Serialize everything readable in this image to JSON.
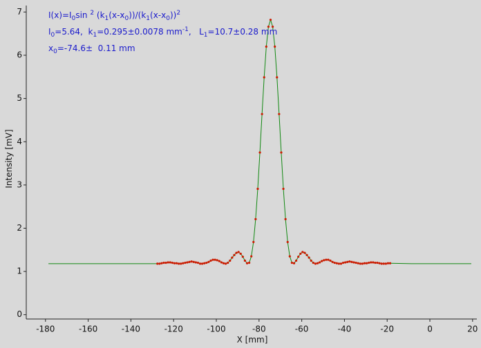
{
  "chart_data": {
    "type": "scatter",
    "annotations": [
      [
        {
          "text": "I(x)=I"
        },
        {
          "text": "0",
          "pos": "sub"
        },
        {
          "text": "sin "
        },
        {
          "text": "2",
          "pos": "sup"
        },
        {
          "text": " (k"
        },
        {
          "text": "1",
          "pos": "sub"
        },
        {
          "text": "(x-x"
        },
        {
          "text": "0",
          "pos": "sub"
        },
        {
          "text": "))/(k"
        },
        {
          "text": "1",
          "pos": "sub"
        },
        {
          "text": "(x-x"
        },
        {
          "text": "0",
          "pos": "sub"
        },
        {
          "text": "))"
        },
        {
          "text": "2",
          "pos": "sup"
        }
      ],
      [
        {
          "text": "I"
        },
        {
          "text": "0",
          "pos": "sub"
        },
        {
          "text": "=5.64,  k"
        },
        {
          "text": "1",
          "pos": "sub"
        },
        {
          "text": "=0.295±0.0078 mm"
        },
        {
          "text": "-1",
          "pos": "sup"
        },
        {
          "text": ",   L"
        },
        {
          "text": "1",
          "pos": "sub"
        },
        {
          "text": "=10.7±0.28 mm"
        }
      ],
      [
        {
          "text": "x"
        },
        {
          "text": "0",
          "pos": "sub"
        },
        {
          "text": "=-74.6±  0.11 mm"
        }
      ]
    ],
    "annotation_color": "#1a1acc",
    "x_label": "X [mm]",
    "y_label": "Intensity [mV]",
    "xlim": [
      -189,
      22
    ],
    "ylim": [
      -0.1,
      7.15
    ],
    "xticks": [
      -180,
      -160,
      -140,
      -120,
      -100,
      -80,
      -60,
      -40,
      -20,
      0,
      20
    ],
    "yticks": [
      0,
      1,
      2,
      3,
      4,
      5,
      6,
      7
    ],
    "grid": false,
    "series": [
      {
        "mode": "line",
        "color": "#118811",
        "x": [
          -178.6,
          -158.6,
          -138.6,
          -127.6,
          -126.6,
          -125.6,
          -124.6,
          -123.6,
          -122.6,
          -121.6,
          -120.6,
          -119.6,
          -118.6,
          -117.6,
          -116.6,
          -115.6,
          -114.6,
          -113.6,
          -112.6,
          -111.6,
          -110.6,
          -109.6,
          -108.6,
          -107.6,
          -106.6,
          -105.6,
          -104.6,
          -103.6,
          -102.6,
          -101.6,
          -100.6,
          -99.6,
          -98.6,
          -97.6,
          -96.6,
          -95.6,
          -94.6,
          -93.6,
          -92.6,
          -91.6,
          -90.6,
          -89.6,
          -88.6,
          -87.6,
          -86.6,
          -85.6,
          -84.6,
          -83.6,
          -82.6,
          -81.6,
          -80.6,
          -79.6,
          -78.6,
          -77.6,
          -76.6,
          -75.6,
          -74.6,
          -73.6,
          -72.6,
          -71.6,
          -70.6,
          -69.6,
          -68.6,
          -67.6,
          -66.6,
          -65.6,
          -64.6,
          -63.6,
          -62.6,
          -61.6,
          -60.6,
          -59.6,
          -58.6,
          -57.6,
          -56.6,
          -55.6,
          -54.6,
          -53.6,
          -52.6,
          -51.6,
          -50.6,
          -49.6,
          -48.6,
          -47.6,
          -46.6,
          -45.6,
          -44.6,
          -43.6,
          -42.6,
          -41.6,
          -40.6,
          -39.6,
          -38.6,
          -37.6,
          -36.6,
          -35.6,
          -34.6,
          -33.6,
          -32.6,
          -31.6,
          -30.6,
          -29.6,
          -28.6,
          -27.6,
          -26.6,
          -25.6,
          -24.6,
          -23.6,
          -22.6,
          -21.6,
          -20.6,
          -19.6,
          -18.6,
          -8.6,
          1.4,
          19.4
        ],
        "values": [
          1.18,
          1.18,
          1.18,
          1.18,
          1.18,
          1.19,
          1.2,
          1.2,
          1.21,
          1.21,
          1.2,
          1.19,
          1.19,
          1.18,
          1.18,
          1.19,
          1.2,
          1.21,
          1.22,
          1.23,
          1.22,
          1.21,
          1.2,
          1.18,
          1.18,
          1.19,
          1.2,
          1.22,
          1.25,
          1.27,
          1.27,
          1.26,
          1.24,
          1.21,
          1.19,
          1.18,
          1.2,
          1.25,
          1.32,
          1.38,
          1.43,
          1.45,
          1.41,
          1.34,
          1.25,
          1.19,
          1.2,
          1.35,
          1.68,
          2.21,
          2.91,
          3.75,
          4.64,
          5.49,
          6.2,
          6.66,
          6.82,
          6.66,
          6.2,
          5.49,
          4.64,
          3.75,
          2.91,
          2.21,
          1.68,
          1.35,
          1.2,
          1.19,
          1.25,
          1.34,
          1.41,
          1.45,
          1.43,
          1.38,
          1.32,
          1.25,
          1.2,
          1.18,
          1.19,
          1.21,
          1.24,
          1.26,
          1.27,
          1.27,
          1.25,
          1.22,
          1.2,
          1.19,
          1.18,
          1.18,
          1.2,
          1.21,
          1.22,
          1.23,
          1.22,
          1.21,
          1.2,
          1.19,
          1.18,
          1.18,
          1.19,
          1.19,
          1.2,
          1.21,
          1.21,
          1.2,
          1.2,
          1.19,
          1.18,
          1.18,
          1.18,
          1.19,
          1.19,
          1.18,
          1.18,
          1.18
        ]
      },
      {
        "mode": "markers",
        "color": "#cc1a00",
        "x": [
          -127.6,
          -126.6,
          -125.6,
          -124.6,
          -123.6,
          -122.6,
          -121.6,
          -120.6,
          -119.6,
          -118.6,
          -117.6,
          -116.6,
          -115.6,
          -114.6,
          -113.6,
          -112.6,
          -111.6,
          -110.6,
          -109.6,
          -108.6,
          -107.6,
          -106.6,
          -105.6,
          -104.6,
          -103.6,
          -102.6,
          -101.6,
          -100.6,
          -99.6,
          -98.6,
          -97.6,
          -96.6,
          -95.6,
          -94.6,
          -93.6,
          -92.6,
          -91.6,
          -90.6,
          -89.6,
          -88.6,
          -87.6,
          -86.6,
          -85.6,
          -84.6,
          -83.6,
          -82.6,
          -81.6,
          -80.6,
          -79.6,
          -78.6,
          -77.6,
          -76.6,
          -75.6,
          -74.6,
          -73.6,
          -72.6,
          -71.6,
          -70.6,
          -69.6,
          -68.6,
          -67.6,
          -66.6,
          -65.6,
          -64.6,
          -63.6,
          -62.6,
          -61.6,
          -60.6,
          -59.6,
          -58.6,
          -57.6,
          -56.6,
          -55.6,
          -54.6,
          -53.6,
          -52.6,
          -51.6,
          -50.6,
          -49.6,
          -48.6,
          -47.6,
          -46.6,
          -45.6,
          -44.6,
          -43.6,
          -42.6,
          -41.6,
          -40.6,
          -39.6,
          -38.6,
          -37.6,
          -36.6,
          -35.6,
          -34.6,
          -33.6,
          -32.6,
          -31.6,
          -30.6,
          -29.6,
          -28.6,
          -27.6,
          -26.6,
          -25.6,
          -24.6,
          -23.6,
          -22.6,
          -21.6,
          -20.6,
          -19.6,
          -18.6
        ],
        "values": [
          1.18,
          1.18,
          1.19,
          1.2,
          1.2,
          1.21,
          1.21,
          1.2,
          1.19,
          1.19,
          1.18,
          1.18,
          1.19,
          1.2,
          1.21,
          1.22,
          1.23,
          1.22,
          1.21,
          1.2,
          1.18,
          1.18,
          1.19,
          1.2,
          1.22,
          1.25,
          1.27,
          1.27,
          1.26,
          1.24,
          1.21,
          1.19,
          1.18,
          1.2,
          1.25,
          1.32,
          1.38,
          1.43,
          1.45,
          1.41,
          1.34,
          1.25,
          1.19,
          1.2,
          1.35,
          1.68,
          2.21,
          2.91,
          3.75,
          4.64,
          5.49,
          6.2,
          6.66,
          6.82,
          6.66,
          6.2,
          5.49,
          4.64,
          3.75,
          2.91,
          2.21,
          1.68,
          1.35,
          1.2,
          1.19,
          1.25,
          1.34,
          1.41,
          1.45,
          1.43,
          1.38,
          1.32,
          1.25,
          1.2,
          1.18,
          1.19,
          1.21,
          1.24,
          1.26,
          1.27,
          1.27,
          1.25,
          1.22,
          1.2,
          1.19,
          1.18,
          1.18,
          1.2,
          1.21,
          1.22,
          1.23,
          1.22,
          1.21,
          1.2,
          1.19,
          1.18,
          1.18,
          1.19,
          1.19,
          1.2,
          1.21,
          1.21,
          1.2,
          1.2,
          1.19,
          1.18,
          1.18,
          1.18,
          1.19,
          1.19
        ]
      }
    ]
  }
}
